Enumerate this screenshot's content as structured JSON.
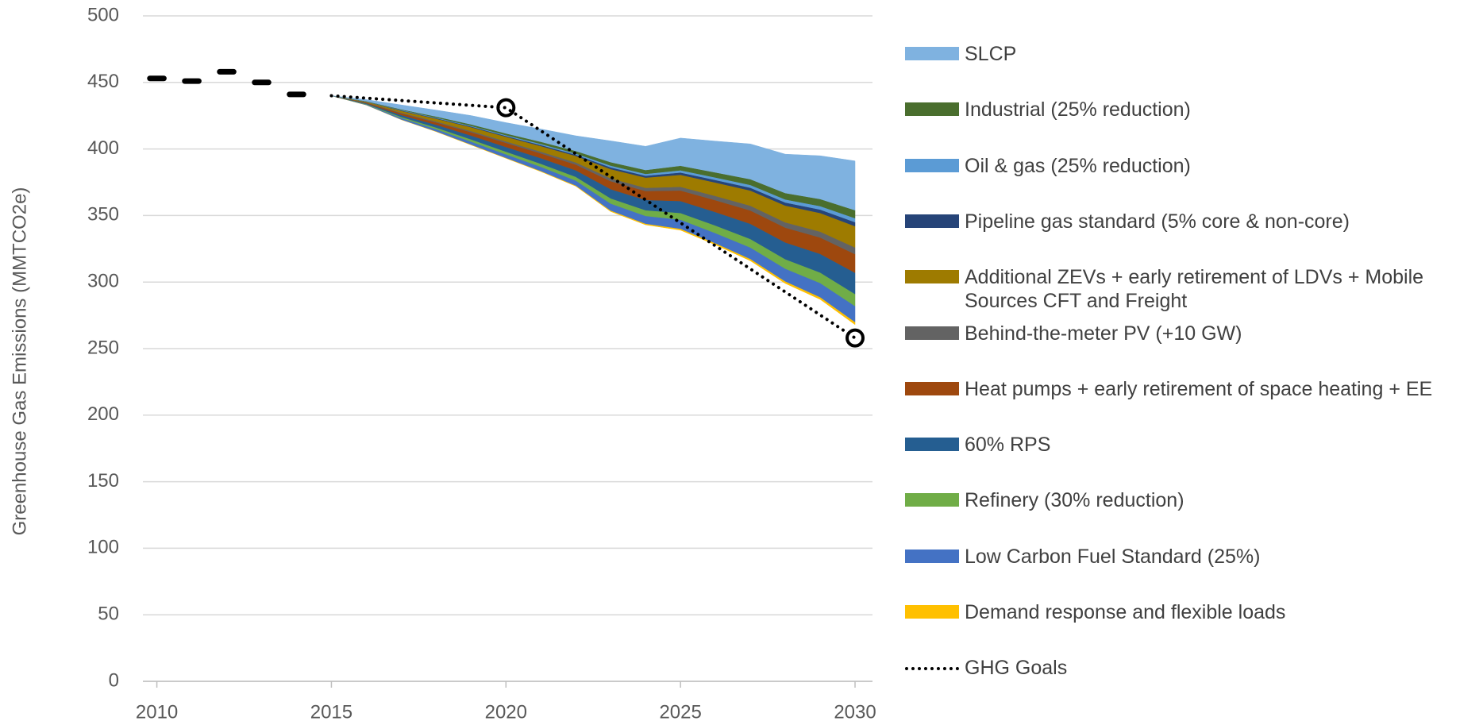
{
  "chart_data": {
    "type": "area",
    "y_label": "Greenhouse Gas Emissions (MMTCO2e)",
    "x": [
      2015,
      2016,
      2017,
      2018,
      2019,
      2020,
      2021,
      2022,
      2023,
      2024,
      2025,
      2026,
      2027,
      2028,
      2029,
      2030
    ],
    "base": {
      "values": [
        440,
        433,
        422,
        413,
        403,
        393,
        383,
        372,
        353,
        343,
        339,
        328,
        316,
        299,
        287,
        268
      ]
    },
    "series": [
      {
        "name": "Demand response and flexible loads",
        "color": "#ffc000",
        "values": [
          0,
          0.1,
          0.2,
          0.3,
          0.4,
          0.4,
          0.5,
          0.6,
          0.8,
          0.9,
          1.1,
          1.2,
          1.4,
          1.6,
          1.7,
          2
        ]
      },
      {
        "name": "Low Carbon Fuel Standard (25%)",
        "color": "#4472c4",
        "values": [
          0,
          0.4,
          1.1,
          1.6,
          2.2,
          2.6,
          3.1,
          3.7,
          5.2,
          5.8,
          6.8,
          7.6,
          8.6,
          9.5,
          10.6,
          12
        ]
      },
      {
        "name": "Refinery (30% reduction)",
        "color": "#70ad47",
        "values": [
          0,
          0.3,
          0.8,
          1.2,
          1.6,
          2.0,
          2.3,
          2.8,
          3.9,
          4.3,
          5.0,
          5.7,
          6.4,
          7.1,
          7.9,
          9
        ]
      },
      {
        "name": "60% RPS",
        "color": "#255e91",
        "values": [
          0,
          0.5,
          1.4,
          2.1,
          2.9,
          3.5,
          4.2,
          4.9,
          6.9,
          7.7,
          9.0,
          10.1,
          11.4,
          12.6,
          14.0,
          16
        ]
      },
      {
        "name": "Heat pumps + early retirement of space heating + EE",
        "color": "#9e480e",
        "values": [
          0,
          0.5,
          1.3,
          1.8,
          2.5,
          3.1,
          3.6,
          4.3,
          6.0,
          6.7,
          7.9,
          8.9,
          10.0,
          11.1,
          12.3,
          14
        ]
      },
      {
        "name": "Behind-the-meter PV (+10 GW)",
        "color": "#636363",
        "values": [
          0,
          0.2,
          0.5,
          0.7,
          0.9,
          1.1,
          1.3,
          1.6,
          2.2,
          2.4,
          2.8,
          3.2,
          3.6,
          4.0,
          4.4,
          5
        ]
      },
      {
        "name": "Additional ZEVs + early retirement of LDVs + Mobile Sources CFT and Freight",
        "color": "#9e7b00",
        "values": [
          0,
          0.5,
          1.4,
          2.1,
          2.9,
          3.5,
          4.2,
          4.9,
          6.9,
          7.7,
          9.0,
          10.1,
          11.4,
          12.6,
          14.0,
          16
        ]
      },
      {
        "name": "Pipeline gas standard (5% core & non-core)",
        "color": "#264478",
        "values": [
          0,
          0.1,
          0.3,
          0.4,
          0.5,
          0.6,
          0.8,
          0.9,
          1.3,
          1.4,
          1.7,
          1.9,
          2.1,
          2.3,
          2.6,
          3
        ]
      },
      {
        "name": "Oil & gas (25% reduction)",
        "color": "#5b9bd5",
        "values": [
          0,
          0.1,
          0.3,
          0.4,
          0.5,
          0.6,
          0.8,
          0.9,
          1.3,
          1.4,
          1.7,
          1.9,
          2.1,
          2.3,
          2.6,
          3
        ]
      },
      {
        "name": "Industrial (25% reduction)",
        "color": "#4a6e2e",
        "values": [
          0,
          0.2,
          0.5,
          0.8,
          1.1,
          1.3,
          1.6,
          1.9,
          2.6,
          2.9,
          3.4,
          3.8,
          4.3,
          4.8,
          5.3,
          6
        ]
      },
      {
        "name": "SLCP",
        "color": "#7fb2e0",
        "values": [
          0,
          1.2,
          3.3,
          4.8,
          6.6,
          8.1,
          9.6,
          11.4,
          16.0,
          17.8,
          20.8,
          23.5,
          26.5,
          29.2,
          32.5,
          37
        ]
      }
    ],
    "goals": {
      "name": "GHG Goals",
      "color": "#000000",
      "x": [
        2015,
        2020,
        2030
      ],
      "values": [
        440,
        431,
        258
      ]
    },
    "history": {
      "color": "#000000",
      "x": [
        2010,
        2011,
        2012,
        2013,
        2014
      ],
      "values": [
        453,
        451,
        458,
        450,
        441
      ]
    },
    "xlim": [
      2009.6,
      2030.5
    ],
    "ylim": [
      0,
      500
    ],
    "xticks": [
      2010,
      2015,
      2020,
      2025,
      2030
    ],
    "yticks": [
      0,
      50,
      100,
      150,
      200,
      250,
      300,
      350,
      400,
      450,
      500
    ],
    "grid": true
  }
}
